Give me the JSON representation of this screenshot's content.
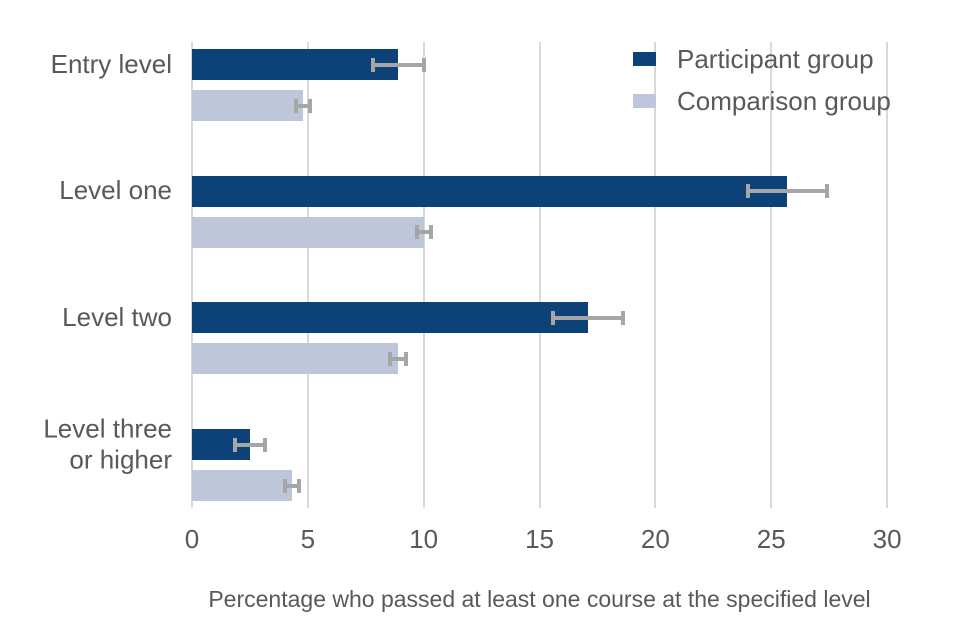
{
  "chart_data": {
    "type": "bar",
    "orientation": "horizontal",
    "title": "",
    "xlabel": "Percentage who passed at least one course at the specified level",
    "ylabel": "",
    "categories": [
      "Entry level",
      "Level one",
      "Level two",
      "Level three or higher"
    ],
    "series": [
      {
        "name": "Participant group",
        "color": "#0c4278",
        "values": [
          8.9,
          25.7,
          17.1,
          2.5
        ],
        "error_bars": [
          1.1,
          1.7,
          1.5,
          0.65
        ]
      },
      {
        "name": "Comparison group",
        "color": "#bdc7d9",
        "values": [
          4.8,
          10.0,
          8.9,
          4.3
        ],
        "error_bars": [
          0.3,
          0.3,
          0.35,
          0.3
        ]
      }
    ],
    "x_ticks": [
      0,
      5,
      10,
      15,
      20,
      25,
      30
    ],
    "xlim": [
      0,
      30
    ],
    "grid": "vertical-gridlines",
    "legend_position": "top-right",
    "colors": {
      "gridline": "#d9d9d9",
      "error_bar": "#a6a6a6",
      "text": "#595959",
      "background": "#ffffff"
    }
  }
}
